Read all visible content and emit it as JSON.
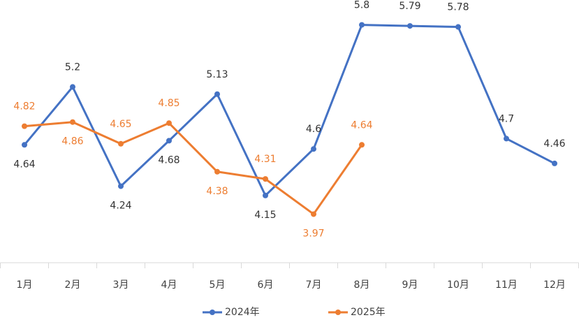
{
  "chart_data": {
    "type": "line",
    "categories": [
      "1月",
      "2月",
      "3月",
      "4月",
      "5月",
      "6月",
      "7月",
      "8月",
      "9月",
      "10月",
      "11月",
      "12月"
    ],
    "series": [
      {
        "name": "2024年",
        "color": "#4472c4",
        "values": [
          4.64,
          5.2,
          4.24,
          4.68,
          5.13,
          4.15,
          4.6,
          5.8,
          5.79,
          5.78,
          4.7,
          4.46
        ]
      },
      {
        "name": "2025年",
        "color": "#ed7d31",
        "values": [
          4.82,
          4.86,
          4.65,
          4.85,
          4.38,
          4.31,
          3.97,
          4.64,
          null,
          null,
          null,
          null
        ]
      }
    ],
    "ylim": [
      3.5,
      6.0
    ],
    "grid": false,
    "legend": "bottom"
  }
}
